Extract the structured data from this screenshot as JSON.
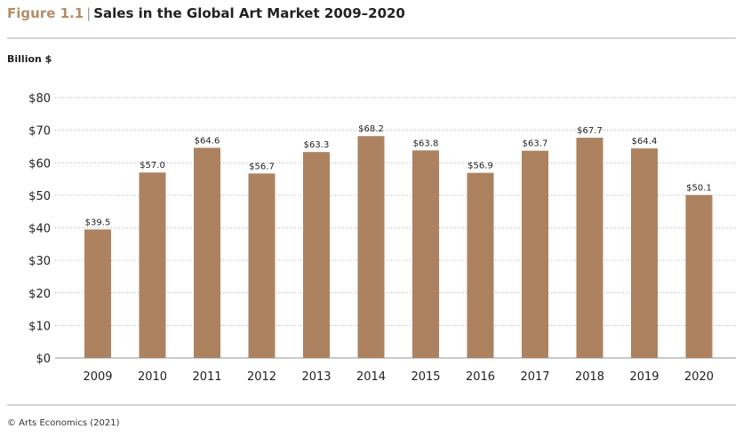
{
  "header": {
    "figure_label": "Figure 1.1",
    "separator": "|",
    "title": "Sales in the Global Art Market 2009–2020"
  },
  "footer": {
    "source": "© Arts Economics (2021)"
  },
  "colors": {
    "bar": "#ad8260",
    "figure_label": "#b58d68",
    "grid": "#999999"
  },
  "chart_data": {
    "type": "bar",
    "title": "Sales in the Global Art Market 2009–2020",
    "ylabel": "Billion $",
    "xlabel": "",
    "categories": [
      "2009",
      "2010",
      "2011",
      "2012",
      "2013",
      "2014",
      "2015",
      "2016",
      "2017",
      "2018",
      "2019",
      "2020"
    ],
    "values": [
      39.5,
      57.0,
      64.6,
      56.7,
      63.3,
      68.2,
      63.8,
      56.9,
      63.7,
      67.7,
      64.4,
      50.1
    ],
    "data_labels": [
      "$39.5",
      "$57.0",
      "$64.6",
      "$56.7",
      "$63.3",
      "$68.2",
      "$63.8",
      "$56.9",
      "$63.7",
      "$67.7",
      "$64.4",
      "$50.1"
    ],
    "yticks": [
      0,
      10,
      20,
      30,
      40,
      50,
      60,
      70,
      80
    ],
    "ytick_labels": [
      "$0",
      "$10",
      "$20",
      "$30",
      "$40",
      "$50",
      "$60",
      "$70",
      "$80"
    ],
    "ylim": [
      0,
      80
    ],
    "grid": "horizontal dotted",
    "legend": "none"
  }
}
